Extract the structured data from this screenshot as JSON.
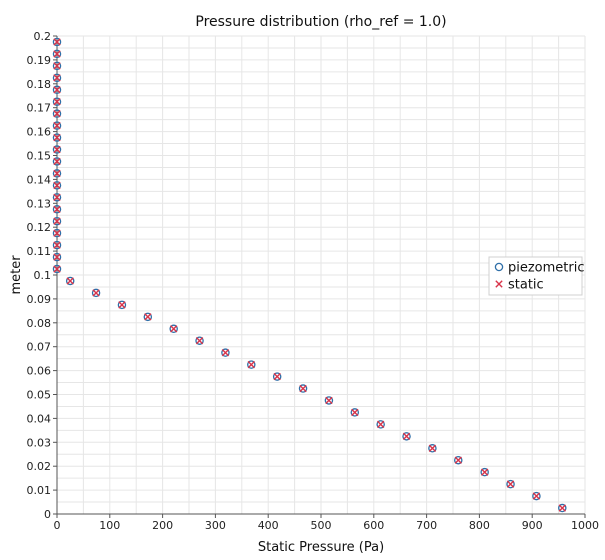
{
  "chart_data": {
    "type": "scatter",
    "title": "Pressure distribution (rho_ref = 1.0)",
    "xlabel": "Static Pressure (Pa)",
    "ylabel": "meter",
    "xlim": [
      0,
      1000
    ],
    "ylim": [
      0,
      0.2
    ],
    "xticks": [
      0,
      100,
      200,
      300,
      400,
      500,
      600,
      700,
      800,
      900,
      1000
    ],
    "yticks": [
      0,
      0.01,
      0.02,
      0.03,
      0.04,
      0.05,
      0.06,
      0.07,
      0.08,
      0.09,
      0.1,
      0.11,
      0.12,
      0.13,
      0.14,
      0.15,
      0.16,
      0.17,
      0.18,
      0.19,
      0.2
    ],
    "xtick_labels": [
      "0",
      "100",
      "200",
      "300",
      "400",
      "500",
      "600",
      "700",
      "800",
      "900",
      "1000"
    ],
    "ytick_labels": [
      "0",
      "0.01",
      "0.02",
      "0.03",
      "0.04",
      "0.05",
      "0.06",
      "0.07",
      "0.08",
      "0.09",
      "0.1",
      "0.11",
      "0.12",
      "0.13",
      "0.14",
      "0.15",
      "0.16",
      "0.17",
      "0.18",
      "0.19",
      "0.2"
    ],
    "grid": true,
    "legend_position": "right",
    "colors": {
      "piezometric": "#2f6fa8",
      "static": "#d9344a",
      "grid": "#e6e6e6",
      "axis": "#555555"
    },
    "series": [
      {
        "name": "piezometric",
        "marker": "circle",
        "x": [
          957,
          908,
          859,
          810,
          760,
          711,
          662,
          613,
          564,
          515,
          466,
          417,
          368,
          319,
          270,
          221,
          172,
          123,
          74,
          25,
          0,
          0,
          0,
          0,
          0,
          0,
          0,
          0,
          0,
          0,
          0,
          0,
          0,
          0,
          0,
          0,
          0,
          0,
          0,
          0
        ],
        "y": [
          0.0025,
          0.0075,
          0.0125,
          0.0175,
          0.0225,
          0.0275,
          0.0325,
          0.0375,
          0.0425,
          0.0475,
          0.0525,
          0.0575,
          0.0625,
          0.0675,
          0.0725,
          0.0775,
          0.0825,
          0.0875,
          0.0925,
          0.0975,
          0.1025,
          0.1075,
          0.1125,
          0.1175,
          0.1225,
          0.1275,
          0.1325,
          0.1375,
          0.1425,
          0.1475,
          0.1525,
          0.1575,
          0.1625,
          0.1675,
          0.1725,
          0.1775,
          0.1825,
          0.1875,
          0.1925,
          0.1975
        ]
      },
      {
        "name": "static",
        "marker": "x",
        "x": [
          957,
          908,
          859,
          810,
          760,
          711,
          662,
          613,
          564,
          515,
          466,
          417,
          368,
          319,
          270,
          221,
          172,
          123,
          74,
          25,
          0,
          0,
          0,
          0,
          0,
          0,
          0,
          0,
          0,
          0,
          0,
          0,
          0,
          0,
          0,
          0,
          0,
          0,
          0,
          0
        ],
        "y": [
          0.0025,
          0.0075,
          0.0125,
          0.0175,
          0.0225,
          0.0275,
          0.0325,
          0.0375,
          0.0425,
          0.0475,
          0.0525,
          0.0575,
          0.0625,
          0.0675,
          0.0725,
          0.0775,
          0.0825,
          0.0875,
          0.0925,
          0.0975,
          0.1025,
          0.1075,
          0.1125,
          0.1175,
          0.1225,
          0.1275,
          0.1325,
          0.1375,
          0.1425,
          0.1475,
          0.1525,
          0.1575,
          0.1625,
          0.1675,
          0.1725,
          0.1775,
          0.1825,
          0.1875,
          0.1925,
          0.1975
        ]
      }
    ]
  }
}
